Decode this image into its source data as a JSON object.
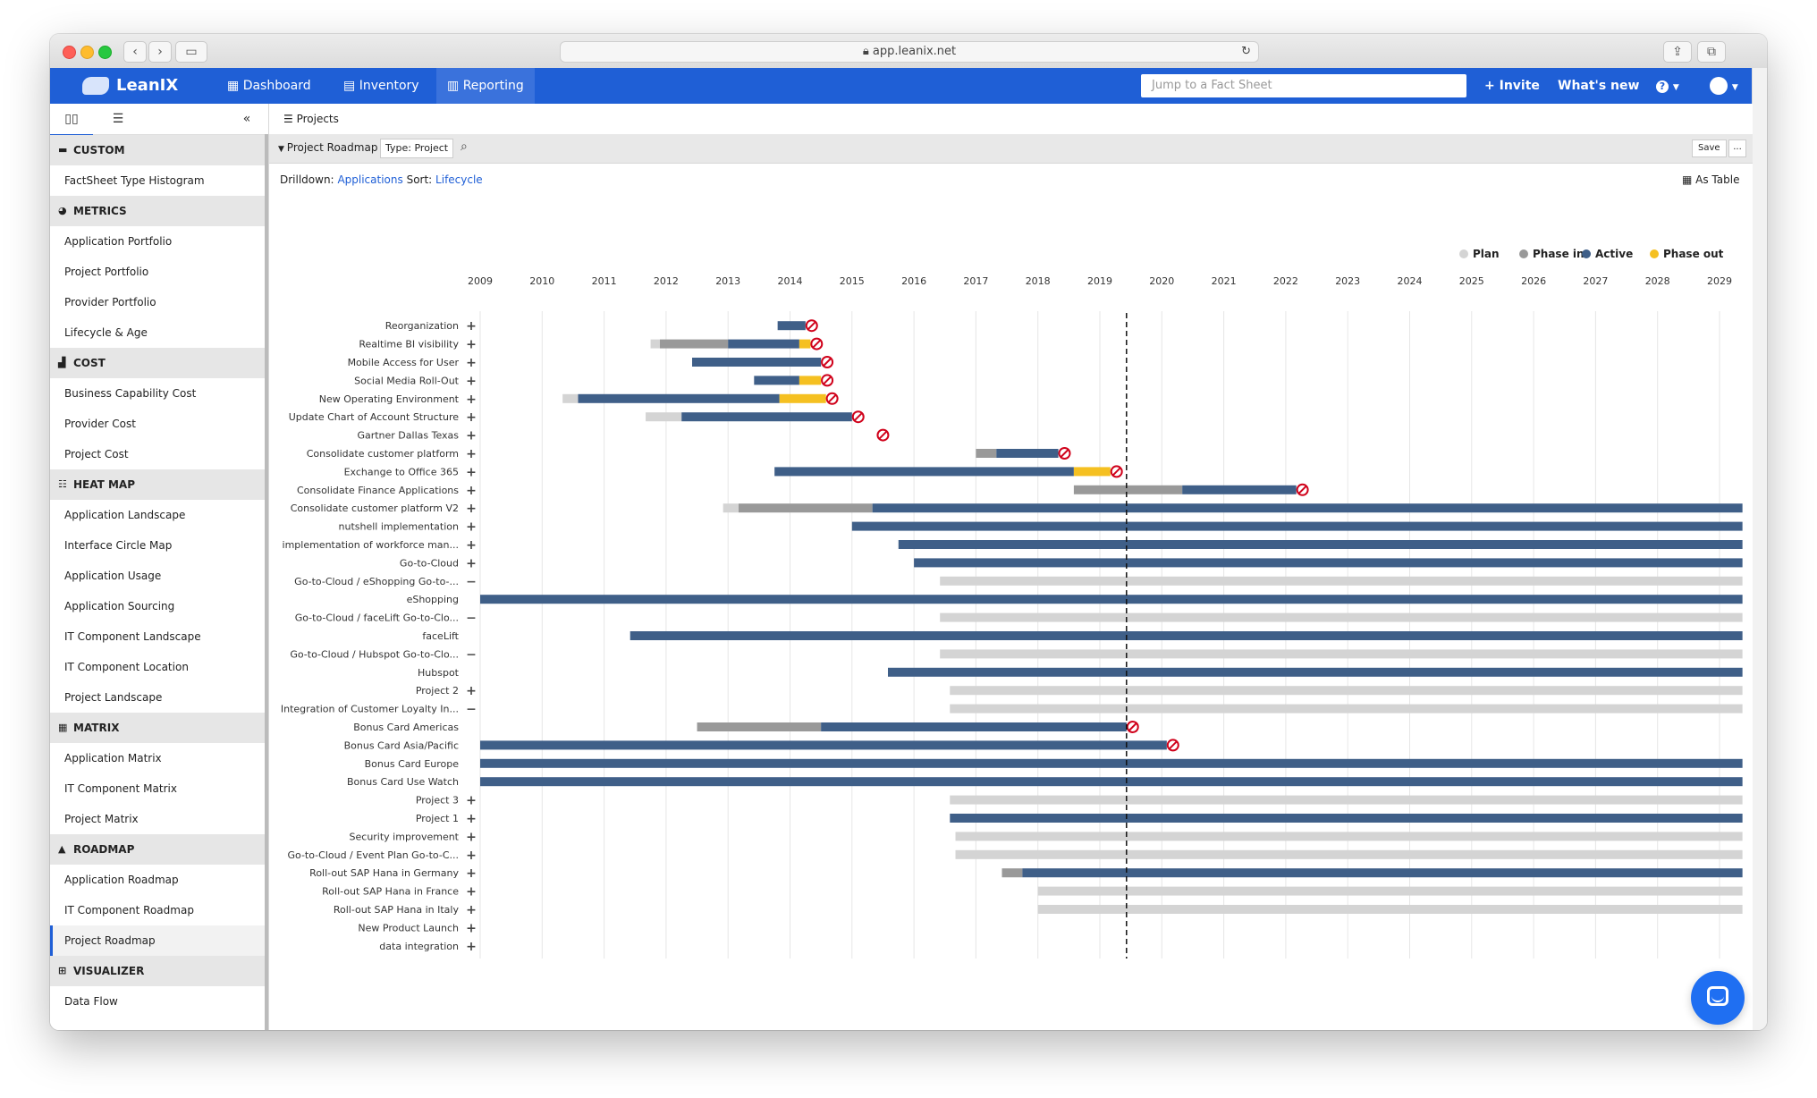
{
  "browser": {
    "url": "app.leanix.net"
  },
  "app": {
    "logo": "LeanIX",
    "nav": [
      {
        "label": "Dashboard",
        "icon": "grid-icon"
      },
      {
        "label": "Inventory",
        "icon": "inventory-icon"
      },
      {
        "label": "Reporting",
        "icon": "reporting-icon"
      }
    ],
    "search_placeholder": "Jump to a Fact Sheet",
    "invite": "+ Invite",
    "whats_new": "What's new",
    "help": "?"
  },
  "sidebar": {
    "sections": [
      {
        "title": "CUSTOM",
        "icon": "folder-icon",
        "items": [
          "FactSheet Type Histogram"
        ]
      },
      {
        "title": "METRICS",
        "icon": "gauge-icon",
        "items": [
          "Application Portfolio",
          "Project Portfolio",
          "Provider Portfolio",
          "Lifecycle & Age"
        ]
      },
      {
        "title": "COST",
        "icon": "bar-chart-icon",
        "items": [
          "Business Capability Cost",
          "Provider Cost",
          "Project Cost"
        ]
      },
      {
        "title": "HEAT MAP",
        "icon": "list-icon",
        "items": [
          "Application Landscape",
          "Interface Circle Map",
          "Application Usage",
          "Application Sourcing",
          "IT Component Landscape",
          "IT Component Location",
          "Project Landscape"
        ]
      },
      {
        "title": "MATRIX",
        "icon": "matrix-icon",
        "items": [
          "Application Matrix",
          "IT Component Matrix",
          "Project Matrix"
        ]
      },
      {
        "title": "ROADMAP",
        "icon": "road-icon",
        "items": [
          "Application Roadmap",
          "IT Component Roadmap",
          "Project Roadmap"
        ]
      },
      {
        "title": "VISUALIZER",
        "icon": "hierarchy-icon",
        "items": [
          "Data Flow"
        ]
      }
    ],
    "selected": "Project Roadmap"
  },
  "main": {
    "tab": "Projects",
    "report_title": "Project Roadmap",
    "type_filter": "Type: Project",
    "save": "Save",
    "more": "...",
    "drilldown_label": "Drilldown:",
    "drilldown_value": "Applications",
    "sort_label": "Sort:",
    "sort_value": "Lifecycle",
    "as_table": "As Table"
  },
  "chart_data": {
    "type": "gantt",
    "years": [
      "2009",
      "2010",
      "2011",
      "2012",
      "2013",
      "2014",
      "2015",
      "2016",
      "2017",
      "2018",
      "2019",
      "2020",
      "2021",
      "2022",
      "2023",
      "2024",
      "2025",
      "2026",
      "2027",
      "2028",
      "2029"
    ],
    "today": 2019.43,
    "legend": [
      {
        "name": "Plan",
        "color": "#d4d4d4"
      },
      {
        "name": "Phase in",
        "color": "#999999"
      },
      {
        "name": "Active",
        "color": "#3f5f88"
      },
      {
        "name": "Phase out",
        "color": "#f5c021"
      }
    ],
    "rows": [
      {
        "label": "Reorganization",
        "toggle": "+",
        "segments": [
          [
            "active",
            2013.8,
            2014.25
          ]
        ],
        "end": 2014.35
      },
      {
        "label": "Realtime BI visibility",
        "toggle": "+",
        "segments": [
          [
            "plan",
            2011.75,
            2011.9
          ],
          [
            "phasein",
            2011.9,
            2013.0
          ],
          [
            "active",
            2013.0,
            2014.15
          ],
          [
            "phaseout",
            2014.15,
            2014.33
          ]
        ],
        "end": 2014.43
      },
      {
        "label": "Mobile Access for User",
        "toggle": "+",
        "segments": [
          [
            "active",
            2012.42,
            2014.5
          ]
        ],
        "end": 2014.6
      },
      {
        "label": "Social Media Roll-Out",
        "toggle": "+",
        "segments": [
          [
            "active",
            2013.42,
            2014.15
          ],
          [
            "phaseout",
            2014.15,
            2014.5
          ]
        ],
        "end": 2014.6
      },
      {
        "label": "New Operating Environment",
        "toggle": "+",
        "segments": [
          [
            "plan",
            2010.33,
            2010.58
          ],
          [
            "active",
            2010.58,
            2013.83
          ],
          [
            "phaseout",
            2013.83,
            2014.58
          ]
        ],
        "end": 2014.68
      },
      {
        "label": "Update Chart of Account Structure",
        "toggle": "+",
        "segments": [
          [
            "plan",
            2011.67,
            2012.25
          ],
          [
            "active",
            2012.25,
            2015.0
          ]
        ],
        "end": 2015.1
      },
      {
        "label": "Gartner Dallas Texas",
        "toggle": "+",
        "segments": [],
        "end": 2015.5
      },
      {
        "label": "Consolidate customer platform",
        "toggle": "+",
        "segments": [
          [
            "phasein",
            2017.0,
            2017.33
          ],
          [
            "active",
            2017.33,
            2018.33
          ]
        ],
        "end": 2018.43
      },
      {
        "label": "Exchange to Office 365",
        "toggle": "+",
        "segments": [
          [
            "active",
            2013.75,
            2018.58
          ],
          [
            "phaseout",
            2018.58,
            2019.17
          ]
        ],
        "end": 2019.27
      },
      {
        "label": "Consolidate Finance Applications",
        "toggle": "+",
        "segments": [
          [
            "phasein",
            2018.58,
            2020.33
          ],
          [
            "active",
            2020.33,
            2022.17
          ]
        ],
        "end": 2022.27
      },
      {
        "label": "Consolidate customer platform V2",
        "toggle": "+",
        "segments": [
          [
            "plan",
            2012.92,
            2013.17
          ],
          [
            "phasein",
            2013.17,
            2015.33
          ],
          [
            "active",
            2015.33,
            2029.37
          ]
        ],
        "end": null
      },
      {
        "label": "nutshell implementation",
        "toggle": "+",
        "segments": [
          [
            "active",
            2015.0,
            2029.37
          ]
        ],
        "end": null
      },
      {
        "label": "implementation of workforce man...",
        "toggle": "+",
        "segments": [
          [
            "active",
            2015.75,
            2029.37
          ]
        ],
        "end": null
      },
      {
        "label": "Go-to-Cloud",
        "toggle": "+",
        "segments": [
          [
            "active",
            2016.0,
            2029.37
          ]
        ],
        "end": null
      },
      {
        "label": "Go-to-Cloud / eShopping Go-to-...",
        "toggle": "-",
        "segments": [
          [
            "plan",
            2016.42,
            2029.37
          ]
        ],
        "end": null
      },
      {
        "label": "eShopping",
        "toggle": "",
        "segments": [
          [
            "active",
            2009.0,
            2029.37
          ]
        ],
        "end": null
      },
      {
        "label": "Go-to-Cloud / faceLift Go-to-Clo...",
        "toggle": "-",
        "segments": [
          [
            "plan",
            2016.42,
            2029.37
          ]
        ],
        "end": null
      },
      {
        "label": "faceLift",
        "toggle": "",
        "segments": [
          [
            "active",
            2011.42,
            2029.37
          ]
        ],
        "end": null
      },
      {
        "label": "Go-to-Cloud / Hubspot Go-to-Clo...",
        "toggle": "-",
        "segments": [
          [
            "plan",
            2016.42,
            2029.37
          ]
        ],
        "end": null
      },
      {
        "label": "Hubspot",
        "toggle": "",
        "segments": [
          [
            "active",
            2015.58,
            2029.37
          ]
        ],
        "end": null
      },
      {
        "label": "Project 2",
        "toggle": "+",
        "segments": [
          [
            "plan",
            2016.58,
            2029.37
          ]
        ],
        "end": null
      },
      {
        "label": "Integration of Customer Loyalty In...",
        "toggle": "-",
        "segments": [
          [
            "plan",
            2016.58,
            2029.37
          ]
        ],
        "end": null
      },
      {
        "label": "Bonus Card Americas",
        "toggle": "",
        "segments": [
          [
            "phasein",
            2012.5,
            2014.5
          ],
          [
            "active",
            2014.5,
            2019.43
          ]
        ],
        "end": 2019.53
      },
      {
        "label": "Bonus Card Asia/Pacific",
        "toggle": "",
        "segments": [
          [
            "active",
            2009.0,
            2020.08
          ]
        ],
        "end": 2020.18
      },
      {
        "label": "Bonus Card Europe",
        "toggle": "",
        "segments": [
          [
            "active",
            2009.0,
            2029.37
          ]
        ],
        "end": null
      },
      {
        "label": "Bonus Card Use Watch",
        "toggle": "",
        "segments": [
          [
            "active",
            2009.0,
            2029.37
          ]
        ],
        "end": null
      },
      {
        "label": "Project 3",
        "toggle": "+",
        "segments": [
          [
            "plan",
            2016.58,
            2029.37
          ]
        ],
        "end": null
      },
      {
        "label": "Project 1",
        "toggle": "+",
        "segments": [
          [
            "active",
            2016.58,
            2029.37
          ]
        ],
        "end": null
      },
      {
        "label": "Security improvement",
        "toggle": "+",
        "segments": [
          [
            "plan",
            2016.67,
            2029.37
          ]
        ],
        "end": null
      },
      {
        "label": "Go-to-Cloud / Event Plan Go-to-C...",
        "toggle": "+",
        "segments": [
          [
            "plan",
            2016.67,
            2029.37
          ]
        ],
        "end": null
      },
      {
        "label": "Roll-out SAP Hana in Germany",
        "toggle": "+",
        "segments": [
          [
            "phasein",
            2017.42,
            2017.75
          ],
          [
            "active",
            2017.75,
            2029.37
          ]
        ],
        "end": null
      },
      {
        "label": "Roll-out SAP Hana in France",
        "toggle": "+",
        "segments": [
          [
            "plan",
            2018.0,
            2029.37
          ]
        ],
        "end": null
      },
      {
        "label": "Roll-out SAP Hana in Italy",
        "toggle": "+",
        "segments": [
          [
            "plan",
            2018.0,
            2029.37
          ]
        ],
        "end": null
      },
      {
        "label": "New Product Launch",
        "toggle": "+",
        "segments": [],
        "end": null
      },
      {
        "label": "data integration",
        "toggle": "+",
        "segments": [],
        "end": null
      }
    ]
  }
}
